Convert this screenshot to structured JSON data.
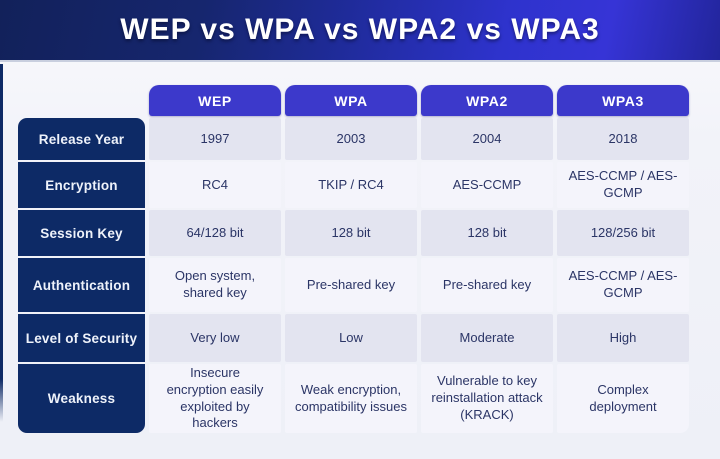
{
  "title": "WEP vs WPA vs WPA2 vs WPA3",
  "chart_data": {
    "type": "table",
    "title": "WEP vs WPA vs WPA2 vs WPA3",
    "columns": [
      "WEP",
      "WPA",
      "WPA2",
      "WPA3"
    ],
    "row_labels": [
      "Release Year",
      "Encryption",
      "Session Key",
      "Authentication",
      "Level of Security",
      "Weakness"
    ],
    "rows": [
      {
        "label": "Release Year",
        "values": [
          "1997",
          "2003",
          "2004",
          "2018"
        ]
      },
      {
        "label": "Encryption",
        "values": [
          "RC4",
          "TKIP / RC4",
          "AES-CCMP",
          "AES-CCMP / AES-GCMP"
        ]
      },
      {
        "label": "Session Key",
        "values": [
          "64/128 bit",
          "128 bit",
          "128 bit",
          "128/256 bit"
        ]
      },
      {
        "label": "Authentication",
        "values": [
          "Open system, shared key",
          "Pre-shared key",
          "Pre-shared key",
          "AES-CCMP / AES-GCMP"
        ]
      },
      {
        "label": "Level of Security",
        "values": [
          "Very low",
          "Low",
          "Moderate",
          "High"
        ]
      },
      {
        "label": "Weakness",
        "values": [
          "Insecure encryption easily exploited by hackers",
          "Weak encryption, compatibility issues",
          "Vulnerable to key reinstallation attack (KRACK)",
          "Complex deployment"
        ]
      }
    ],
    "legend": "none",
    "grid": "off"
  },
  "colors": {
    "header_gradient_left": "#12215a",
    "header_gradient_mid": "#2e33cd",
    "header_gradient_right": "#22259b",
    "column_pill_bg": "#3c39cb",
    "row_label_bg": "#0d2a66",
    "cell_row_dark": "#e3e4f0",
    "cell_row_light": "#f4f4fb",
    "cell_text": "#2b3566",
    "page_bg": "#eef0f7",
    "title_text": "#ffffff"
  }
}
